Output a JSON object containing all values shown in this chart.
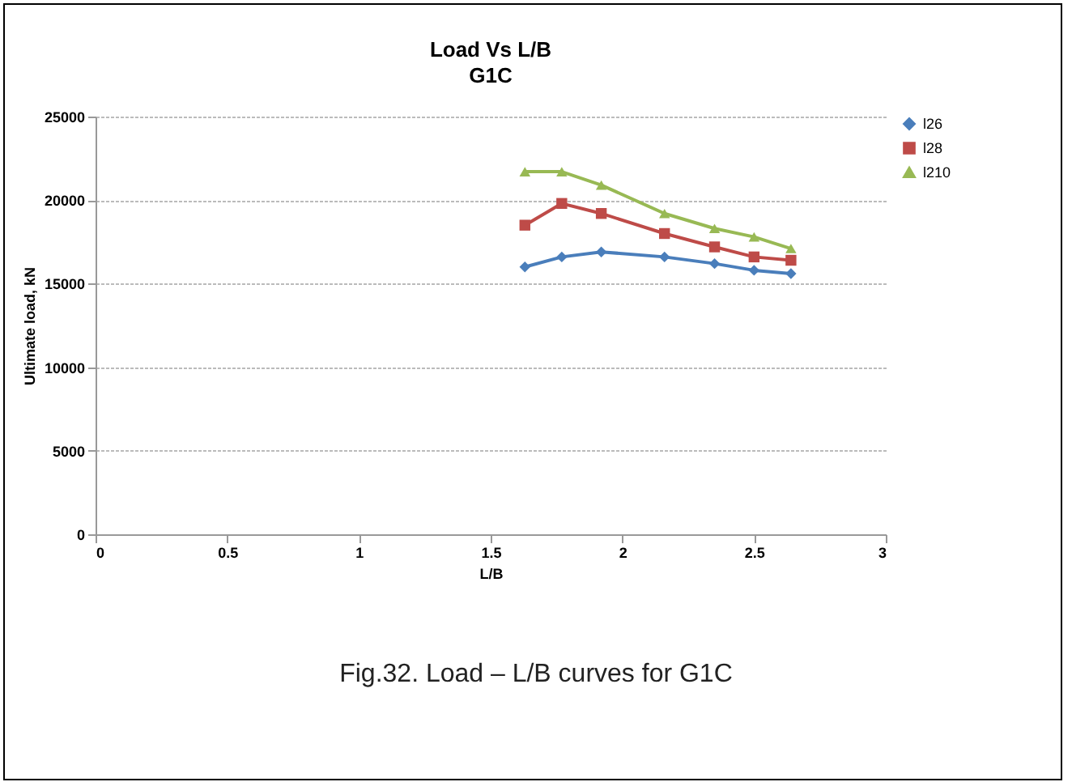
{
  "chart_data": {
    "type": "line",
    "title": "Load Vs L/B",
    "subtitle": "G1C",
    "xlabel": "L/B",
    "ylabel": "Ultimate load, kN",
    "x": [
      1.63,
      1.77,
      1.92,
      2.16,
      2.35,
      2.5,
      2.64
    ],
    "series": [
      {
        "name": "l26",
        "color": "#4a7ebb",
        "marker": "diamond",
        "values": [
          16000,
          16600,
          16900,
          16600,
          16200,
          15800,
          15600
        ]
      },
      {
        "name": "l28",
        "color": "#be4b48",
        "marker": "square",
        "values": [
          18500,
          19800,
          19200,
          18000,
          17200,
          16600,
          16400
        ]
      },
      {
        "name": "l210",
        "color": "#98b954",
        "marker": "triangle",
        "values": [
          21700,
          21700,
          20900,
          19200,
          18300,
          17800,
          17100
        ]
      }
    ],
    "xlim": [
      0,
      3
    ],
    "xticks": [
      0,
      0.5,
      1,
      1.5,
      2,
      2.5,
      3
    ],
    "ylim": [
      0,
      25000
    ],
    "yticks": [
      0,
      5000,
      10000,
      15000,
      20000,
      25000
    ],
    "grid": "y",
    "legend": "right",
    "line_style": "solid",
    "annotations": [
      "Fig.32. Load – L/B curves for G1C"
    ]
  }
}
